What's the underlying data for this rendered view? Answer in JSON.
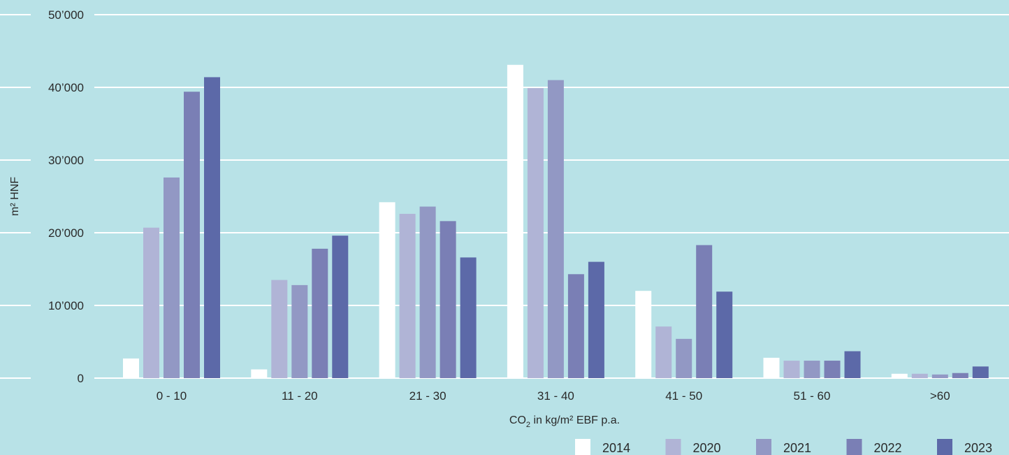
{
  "colors": {
    "background": "#b8e2e7",
    "grid": "#ffffff",
    "text": "#2a2a2a"
  },
  "chart_data": {
    "type": "bar",
    "title": "",
    "xlabel_main": "CO",
    "xlabel_sub": "2",
    "xlabel_rest": " in kg/m² EBF p.a.",
    "ylabel": "m² HNF",
    "ylim": [
      0,
      50000
    ],
    "yticks": [
      0,
      10000,
      20000,
      30000,
      40000,
      50000
    ],
    "ytick_labels": [
      "0",
      "10’000",
      "20’000",
      "30’000",
      "40’000",
      "50’000"
    ],
    "grid": true,
    "legend_position": "bottom-right",
    "categories": [
      "0 - 10",
      "11 - 20",
      "21 - 30",
      "31 - 40",
      "41 - 50",
      "51 - 60",
      ">60"
    ],
    "series": [
      {
        "name": "2014",
        "color": "#ffffff",
        "values": [
          2700,
          1200,
          24200,
          43100,
          12000,
          2800,
          600
        ]
      },
      {
        "name": "2020",
        "color": "#b0b4d6",
        "values": [
          20700,
          13500,
          22600,
          39900,
          7100,
          2400,
          600
        ]
      },
      {
        "name": "2021",
        "color": "#9298c4",
        "values": [
          27600,
          12800,
          23600,
          41000,
          5400,
          2400,
          500
        ]
      },
      {
        "name": "2022",
        "color": "#7a7fb5",
        "values": [
          39400,
          17800,
          21600,
          14300,
          18300,
          2400,
          700
        ]
      },
      {
        "name": "2023",
        "color": "#5c69a8",
        "values": [
          41400,
          19600,
          16600,
          16000,
          11900,
          3700,
          1600
        ]
      }
    ]
  }
}
